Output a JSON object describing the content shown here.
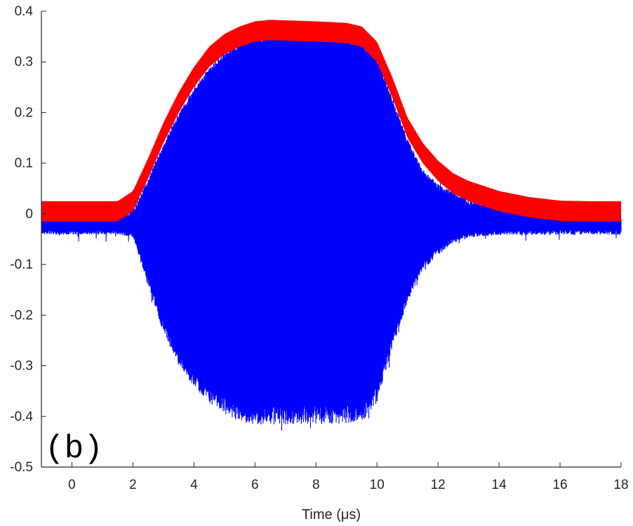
{
  "chart_data": {
    "type": "line",
    "title": "",
    "panel_label": "(b)",
    "xlabel": "Time (μs)",
    "ylabel": "",
    "xlim": [
      -1,
      18
    ],
    "ylim": [
      -0.5,
      0.4
    ],
    "x_ticks": [
      0,
      2,
      4,
      6,
      8,
      10,
      12,
      14,
      16,
      18
    ],
    "x_tick_labels": [
      "0",
      "2",
      "4",
      "6",
      "8",
      "10",
      "12",
      "14",
      "16",
      "18"
    ],
    "y_ticks": [
      0.4,
      0.3,
      0.2,
      0.1,
      0,
      -0.1,
      -0.2,
      -0.3,
      -0.4,
      -0.5
    ],
    "y_tick_labels": [
      "0.4",
      "0.3",
      "0.2",
      "0.1",
      "0",
      "-0.1",
      "-0.2",
      "-0.3",
      "-0.4",
      "-0.5"
    ],
    "grid": false,
    "legend": "none",
    "series": [
      {
        "color": "#0000ff",
        "style": "oscillating signal (upper / lower envelope)",
        "x": [
          -1,
          0,
          1,
          1.5,
          2,
          2.5,
          3,
          3.5,
          4,
          4.5,
          5,
          5.5,
          6,
          6.5,
          7,
          8,
          9,
          9.5,
          10,
          10.5,
          11,
          11.5,
          12,
          12.5,
          13,
          14,
          15,
          16,
          17,
          18
        ],
        "upper": [
          -0.01,
          -0.01,
          -0.01,
          -0.01,
          0.0,
          0.06,
          0.13,
          0.19,
          0.24,
          0.28,
          0.31,
          0.33,
          0.34,
          0.345,
          0.345,
          0.343,
          0.338,
          0.33,
          0.3,
          0.22,
          0.14,
          0.08,
          0.05,
          0.035,
          0.02,
          0.01,
          0.0,
          -0.005,
          -0.01,
          -0.01
        ],
        "lower": [
          -0.035,
          -0.035,
          -0.035,
          -0.035,
          -0.04,
          -0.13,
          -0.22,
          -0.28,
          -0.32,
          -0.35,
          -0.37,
          -0.385,
          -0.39,
          -0.39,
          -0.39,
          -0.39,
          -0.388,
          -0.385,
          -0.35,
          -0.25,
          -0.16,
          -0.1,
          -0.07,
          -0.05,
          -0.04,
          -0.035,
          -0.035,
          -0.035,
          -0.035,
          -0.035
        ]
      },
      {
        "color": "#ff0000",
        "style": "envelope (thick band)",
        "x": [
          -1,
          0,
          1,
          1.5,
          2,
          2.5,
          3,
          3.5,
          4,
          4.5,
          5,
          5.5,
          6,
          6.5,
          7,
          8,
          9,
          9.5,
          10,
          10.5,
          11,
          11.5,
          12,
          12.5,
          13,
          14,
          15,
          16,
          17,
          18
        ],
        "values": [
          0.005,
          0.005,
          0.005,
          0.005,
          0.025,
          0.09,
          0.16,
          0.22,
          0.27,
          0.31,
          0.335,
          0.35,
          0.36,
          0.363,
          0.362,
          0.36,
          0.357,
          0.35,
          0.32,
          0.25,
          0.17,
          0.12,
          0.085,
          0.06,
          0.045,
          0.025,
          0.013,
          0.006,
          0.005,
          0.005
        ],
        "band_halfwidth": 0.02
      }
    ]
  }
}
